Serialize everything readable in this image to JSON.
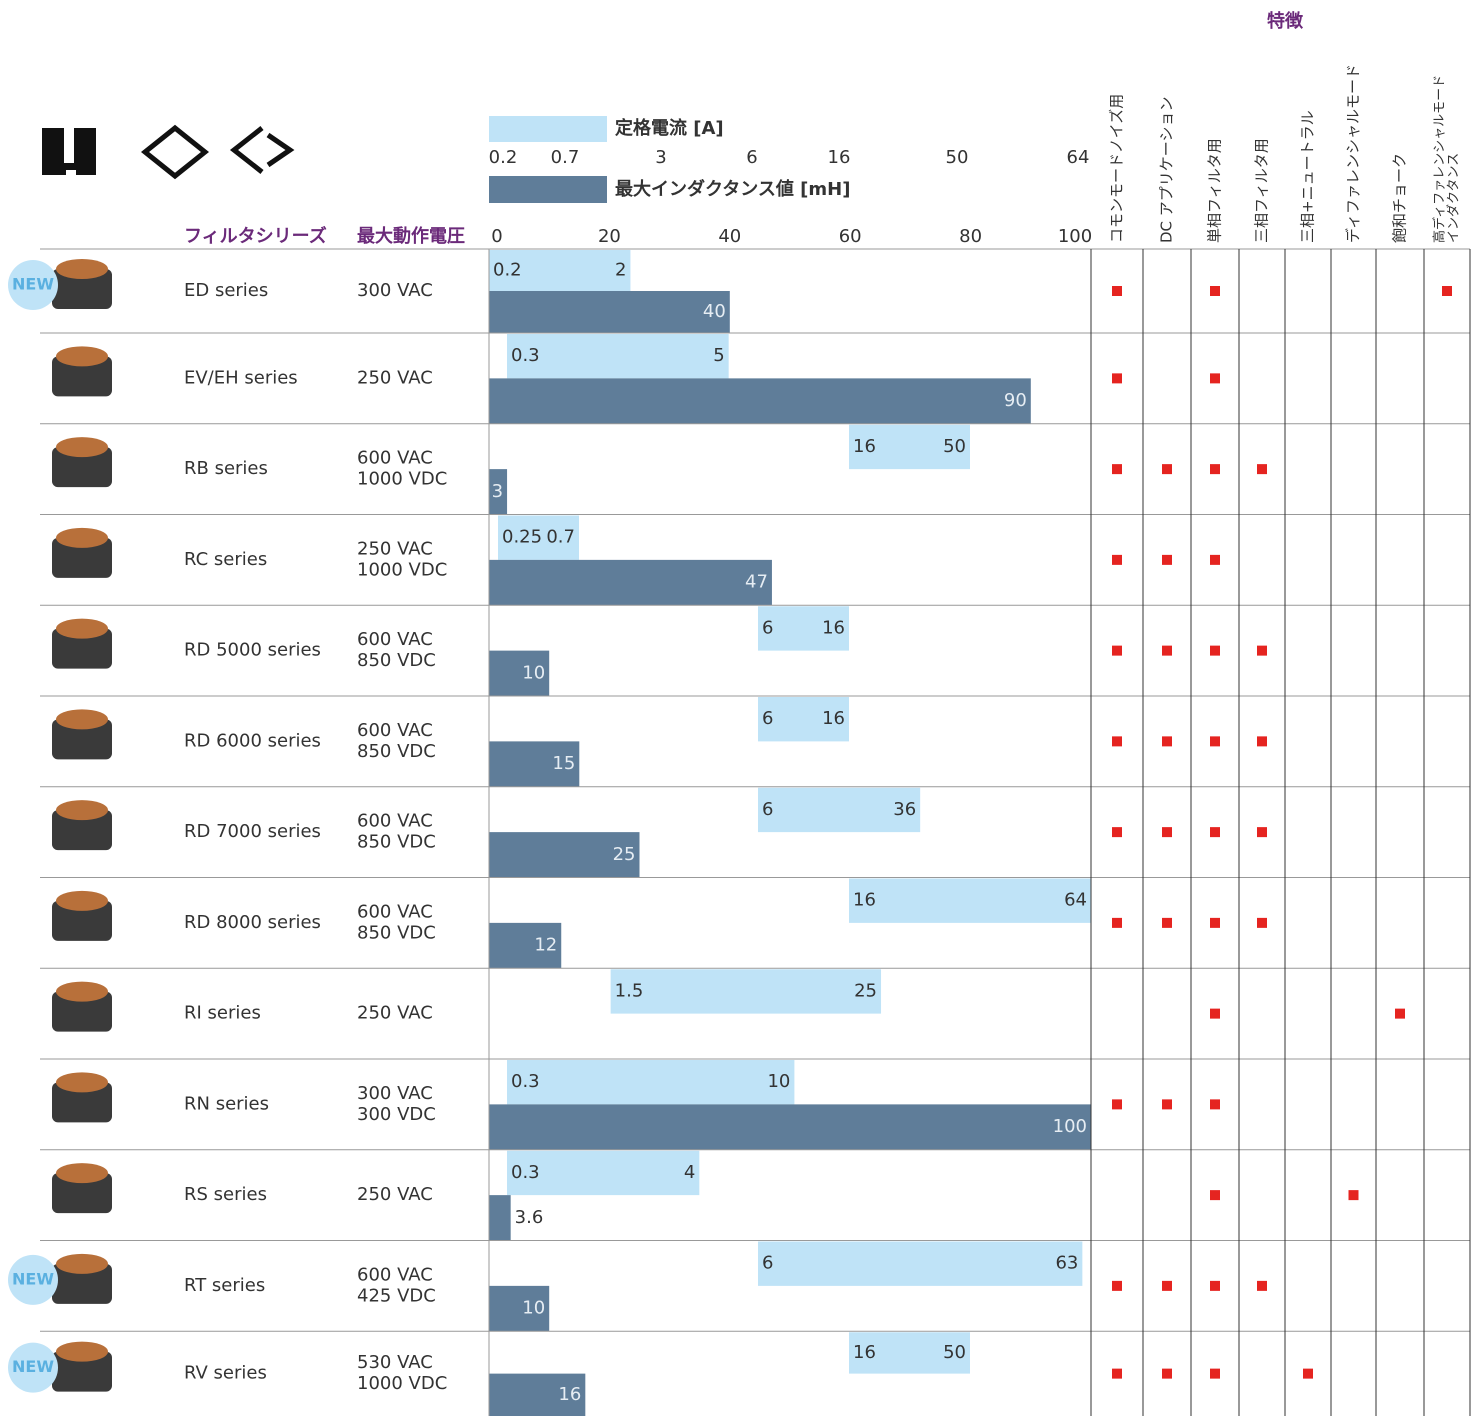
{
  "header": {
    "feature_group": "特徴",
    "features": [
      [
        "コモンモードノイズ用"
      ],
      [
        "DC アプリケーション"
      ],
      [
        "単相フィルタ用"
      ],
      [
        "三相フィルタ用"
      ],
      [
        "三相+ニュートラル"
      ],
      [
        "ディファレンシャルモード"
      ],
      [
        "飽和チョーク"
      ],
      [
        "高ディファレンシャルモード",
        "インダクタンス"
      ]
    ]
  },
  "legend": {
    "current": "定格電流 [A]",
    "inductance": "最大インダクタンス値 [mH]"
  },
  "current_axis": {
    "ticks": [
      0.2,
      0.7,
      3,
      6,
      16,
      50,
      64
    ]
  },
  "inductance_axis": {
    "lim": [
      0,
      100
    ],
    "ticks": [
      0,
      20,
      40,
      60,
      80,
      100
    ]
  },
  "columns": {
    "series": "フィルタシリーズ",
    "voltage": "最大動作電圧"
  },
  "rows": [
    {
      "badge": "NEW",
      "name": "ED series",
      "voltage": [
        "300 VAC"
      ],
      "current": [
        0.2,
        2
      ],
      "inductance": 40,
      "features": [
        true,
        false,
        true,
        false,
        false,
        false,
        false,
        true
      ]
    },
    {
      "name": "EV/EH series",
      "voltage": [
        "250 VAC"
      ],
      "current": [
        0.3,
        5
      ],
      "inductance": 90,
      "features": [
        true,
        false,
        true,
        false,
        false,
        false,
        false,
        false
      ]
    },
    {
      "name": "RB series",
      "voltage": [
        "600 VAC",
        "1000 VDC"
      ],
      "current": [
        16,
        50
      ],
      "inductance": 3,
      "features": [
        true,
        true,
        true,
        true,
        false,
        false,
        false,
        false
      ]
    },
    {
      "name": "RC series",
      "voltage": [
        "250 VAC",
        "1000 VDC"
      ],
      "current": [
        0.25,
        0.7
      ],
      "inductance": 47,
      "features": [
        true,
        true,
        true,
        false,
        false,
        false,
        false,
        false
      ]
    },
    {
      "name": "RD 5000 series",
      "voltage": [
        "600 VAC",
        "850 VDC"
      ],
      "current": [
        6,
        16
      ],
      "inductance": 10,
      "features": [
        true,
        true,
        true,
        true,
        false,
        false,
        false,
        false
      ]
    },
    {
      "name": "RD 6000 series",
      "voltage": [
        "600 VAC",
        "850 VDC"
      ],
      "current": [
        6,
        16
      ],
      "inductance": 15,
      "features": [
        true,
        true,
        true,
        true,
        false,
        false,
        false,
        false
      ]
    },
    {
      "name": "RD 7000 series",
      "voltage": [
        "600 VAC",
        "850 VDC"
      ],
      "current": [
        6,
        36
      ],
      "inductance": 25,
      "features": [
        true,
        true,
        true,
        true,
        false,
        false,
        false,
        false
      ]
    },
    {
      "name": "RD 8000 series",
      "voltage": [
        "600 VAC",
        "850 VDC"
      ],
      "current": [
        16,
        64
      ],
      "inductance": 12,
      "features": [
        true,
        true,
        true,
        true,
        false,
        false,
        false,
        false
      ]
    },
    {
      "name": "RI series",
      "voltage": [
        "250 VAC"
      ],
      "current": [
        1.5,
        25
      ],
      "inductance": null,
      "features": [
        false,
        false,
        true,
        false,
        false,
        false,
        true,
        false
      ]
    },
    {
      "name": "RN series",
      "voltage": [
        "300 VAC",
        "300 VDC"
      ],
      "current": [
        0.3,
        10
      ],
      "inductance": 100,
      "features": [
        true,
        true,
        true,
        false,
        false,
        false,
        false,
        false
      ]
    },
    {
      "name": "RS series",
      "voltage": [
        "250 VAC"
      ],
      "current": [
        0.3,
        4
      ],
      "inductance": 3.6,
      "features": [
        false,
        false,
        true,
        false,
        false,
        true,
        false,
        false
      ]
    },
    {
      "badge": "NEW",
      "name": "RT series",
      "voltage": [
        "600 VAC",
        "425 VDC"
      ],
      "current": [
        6,
        63
      ],
      "inductance": 10,
      "features": [
        true,
        true,
        true,
        true,
        false,
        false,
        false,
        false
      ]
    },
    {
      "badge": "NEW",
      "name": "RV series",
      "voltage": [
        "530 VAC",
        "1000 VDC"
      ],
      "current": [
        16,
        50
      ],
      "inductance": 16,
      "features": [
        true,
        true,
        true,
        false,
        true,
        false,
        false,
        false
      ]
    }
  ]
}
